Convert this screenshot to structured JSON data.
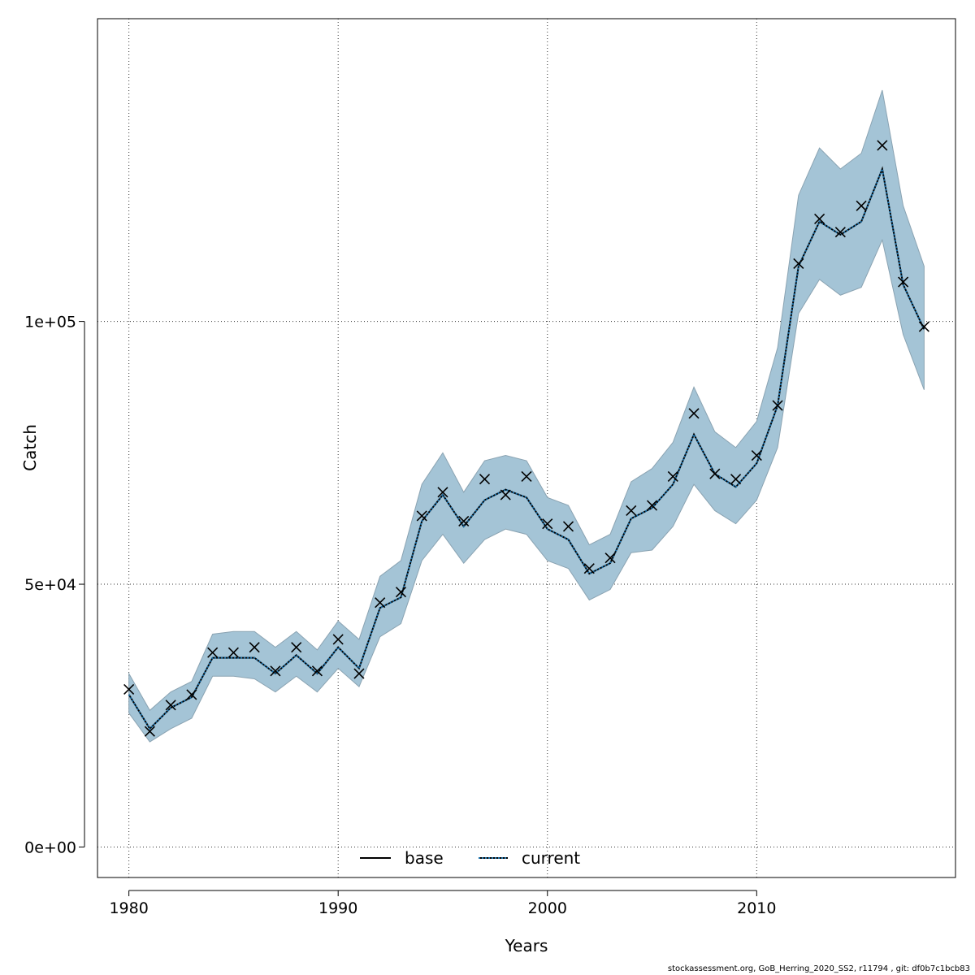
{
  "chart_data": {
    "type": "line",
    "xlabel": "Years",
    "ylabel": "Catch",
    "xlim": [
      1978.5,
      2019.5
    ],
    "ylim": [
      -5800,
      157600
    ],
    "x_ticks": [
      1980,
      1990,
      2000,
      2010
    ],
    "x_tick_labels": [
      "1980",
      "1990",
      "2000",
      "2010"
    ],
    "y_ticks": [
      0,
      50000,
      100000
    ],
    "y_tick_labels": [
      "0e+00",
      "5e+04",
      "1e+05"
    ],
    "grid": true,
    "legend_position": "bottom",
    "colors": {
      "band_fill": "#a4c4d6",
      "band_stroke": "#8aa3b2",
      "current_line": "#000000",
      "current_line_dots": "#1a6fa8",
      "base_line": "#000000",
      "observed_marker": "#000000",
      "grid": "#333333"
    },
    "x": [
      1980,
      1981,
      1982,
      1983,
      1984,
      1985,
      1986,
      1987,
      1988,
      1989,
      1990,
      1991,
      1992,
      1993,
      1994,
      1995,
      1996,
      1997,
      1998,
      1999,
      2000,
      2001,
      2002,
      2003,
      2004,
      2005,
      2006,
      2007,
      2008,
      2009,
      2010,
      2011,
      2012,
      2013,
      2014,
      2015,
      2016,
      2017,
      2018
    ],
    "observed": [
      30000,
      22000,
      27000,
      29000,
      37000,
      37000,
      38000,
      33500,
      38000,
      33500,
      39500,
      33000,
      46500,
      48500,
      63000,
      67500,
      62000,
      70000,
      67000,
      70500,
      61500,
      61000,
      53000,
      55000,
      64000,
      65000,
      70500,
      82500,
      71000,
      70000,
      74500,
      84000,
      111000,
      119500,
      117000,
      122000,
      133500,
      107500,
      99000
    ],
    "series": [
      {
        "name": "base",
        "values": [
          29000,
          22500,
          26500,
          28500,
          36000,
          36000,
          36000,
          33000,
          36500,
          33000,
          38000,
          34000,
          45500,
          47500,
          62000,
          67000,
          61000,
          66000,
          68000,
          66500,
          60500,
          58500,
          52000,
          54000,
          62500,
          64500,
          69000,
          78500,
          71000,
          68500,
          73000,
          84000,
          110500,
          119000,
          116500,
          119000,
          129000,
          107000,
          98500
        ]
      },
      {
        "name": "current",
        "values": [
          29000,
          22500,
          26500,
          28500,
          36000,
          36000,
          36000,
          33000,
          36500,
          33000,
          38000,
          34000,
          45500,
          47500,
          62000,
          67000,
          61000,
          66000,
          68000,
          66500,
          60500,
          58500,
          52000,
          54000,
          62500,
          64500,
          69000,
          78500,
          71000,
          68500,
          73000,
          84000,
          110500,
          119000,
          116500,
          119000,
          129000,
          107000,
          98500
        ]
      }
    ],
    "band_upper": [
      33000,
      26000,
      29500,
      31500,
      40500,
      41000,
      41000,
      38000,
      41000,
      37500,
      43000,
      39500,
      51500,
      54500,
      69000,
      75000,
      67500,
      73500,
      74500,
      73500,
      66500,
      65000,
      57500,
      59500,
      69500,
      72000,
      77000,
      87500,
      79000,
      76000,
      81000,
      95000,
      124000,
      133000,
      129000,
      132000,
      144000,
      122000,
      110500
    ],
    "band_lower": [
      25500,
      20000,
      22500,
      24500,
      32500,
      32500,
      32000,
      29500,
      32500,
      29500,
      34000,
      30500,
      40000,
      42500,
      54500,
      59500,
      54000,
      58500,
      60500,
      59500,
      54500,
      53000,
      47000,
      49000,
      56000,
      56500,
      61000,
      69000,
      64000,
      61500,
      66000,
      76000,
      101500,
      108000,
      105000,
      106500,
      115500,
      97500,
      87000
    ]
  },
  "legend": {
    "entries": [
      {
        "label": "base",
        "style": "solid"
      },
      {
        "label": "current",
        "style": "dotted"
      }
    ]
  },
  "footer": {
    "text": "stockassessment.org, GoB_Herring_2020_SS2, r11794 , git: df0b7c1bcb83"
  }
}
